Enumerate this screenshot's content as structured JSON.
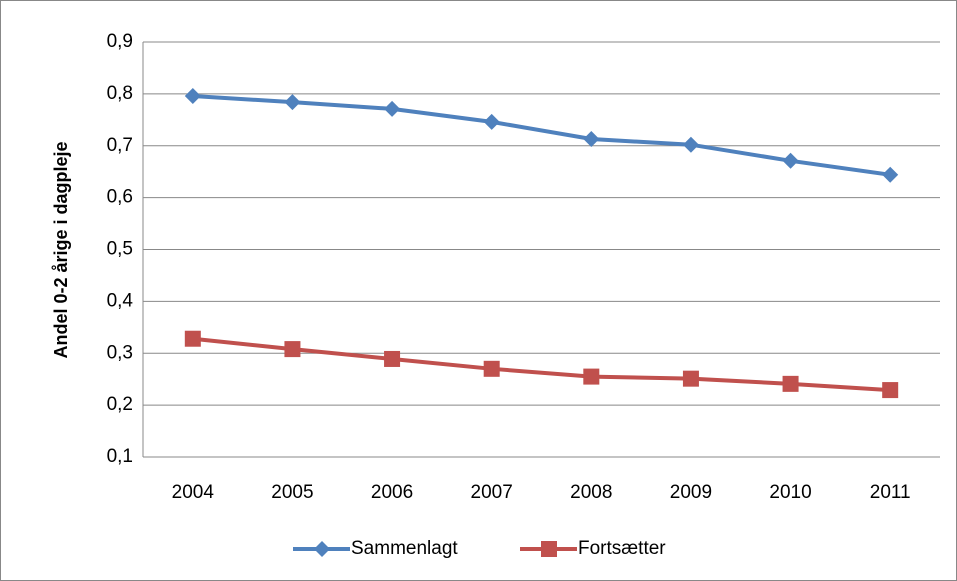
{
  "chart_data": {
    "type": "line",
    "y_label": "Andel 0-2 årige i dagpleje",
    "categories": [
      "2004",
      "2005",
      "2006",
      "2007",
      "2008",
      "2009",
      "2010",
      "2011"
    ],
    "series": [
      {
        "name": "Sammenlagt",
        "color": "#4f81bd",
        "marker": "diamond",
        "values": [
          0.796,
          0.784,
          0.771,
          0.746,
          0.713,
          0.702,
          0.671,
          0.644
        ]
      },
      {
        "name": "Fortsætter",
        "color": "#c0504d",
        "marker": "square",
        "values": [
          0.328,
          0.308,
          0.289,
          0.27,
          0.255,
          0.251,
          0.241,
          0.229
        ]
      }
    ],
    "ylim": [
      0.1,
      0.9
    ],
    "yticks": [
      {
        "value": 0.1,
        "label": "0,1"
      },
      {
        "value": 0.2,
        "label": "0,2"
      },
      {
        "value": 0.3,
        "label": "0,3"
      },
      {
        "value": 0.4,
        "label": "0,4"
      },
      {
        "value": 0.5,
        "label": "0,5"
      },
      {
        "value": 0.6,
        "label": "0,6"
      },
      {
        "value": 0.7,
        "label": "0,7"
      },
      {
        "value": 0.8,
        "label": "0,8"
      },
      {
        "value": 0.9,
        "label": "0,9"
      }
    ],
    "grid": true,
    "legend": "bottom"
  }
}
